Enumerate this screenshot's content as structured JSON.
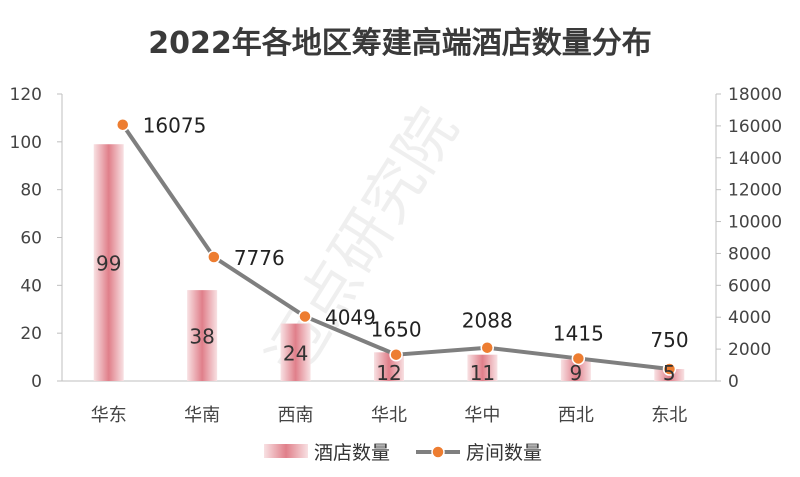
{
  "chart_data": {
    "type": "bar",
    "title": "2022年各地区筹建高端酒店数量分布",
    "watermark": "迈点研究院",
    "categories": [
      "华东",
      "华南",
      "西南",
      "华北",
      "华中",
      "西北",
      "东北"
    ],
    "series": [
      {
        "name": "酒店数量",
        "type": "bar",
        "axis": "left",
        "values": [
          99,
          38,
          24,
          12,
          11,
          9,
          5
        ],
        "color": "#e58a94"
      },
      {
        "name": "房间数量",
        "type": "line",
        "axis": "right",
        "values": [
          16075,
          7776,
          4049,
          1650,
          2088,
          1415,
          750
        ],
        "color": "#7f7f7f",
        "marker_color": "#ed7d31"
      }
    ],
    "y_left": {
      "min": 0,
      "max": 120,
      "ticks": [
        0,
        20,
        40,
        60,
        80,
        100,
        120
      ]
    },
    "y_right": {
      "min": 0,
      "max": 18000,
      "ticks": [
        0,
        2000,
        4000,
        6000,
        8000,
        10000,
        12000,
        14000,
        16000,
        18000
      ]
    },
    "legend_position": "bottom",
    "grid": false
  }
}
